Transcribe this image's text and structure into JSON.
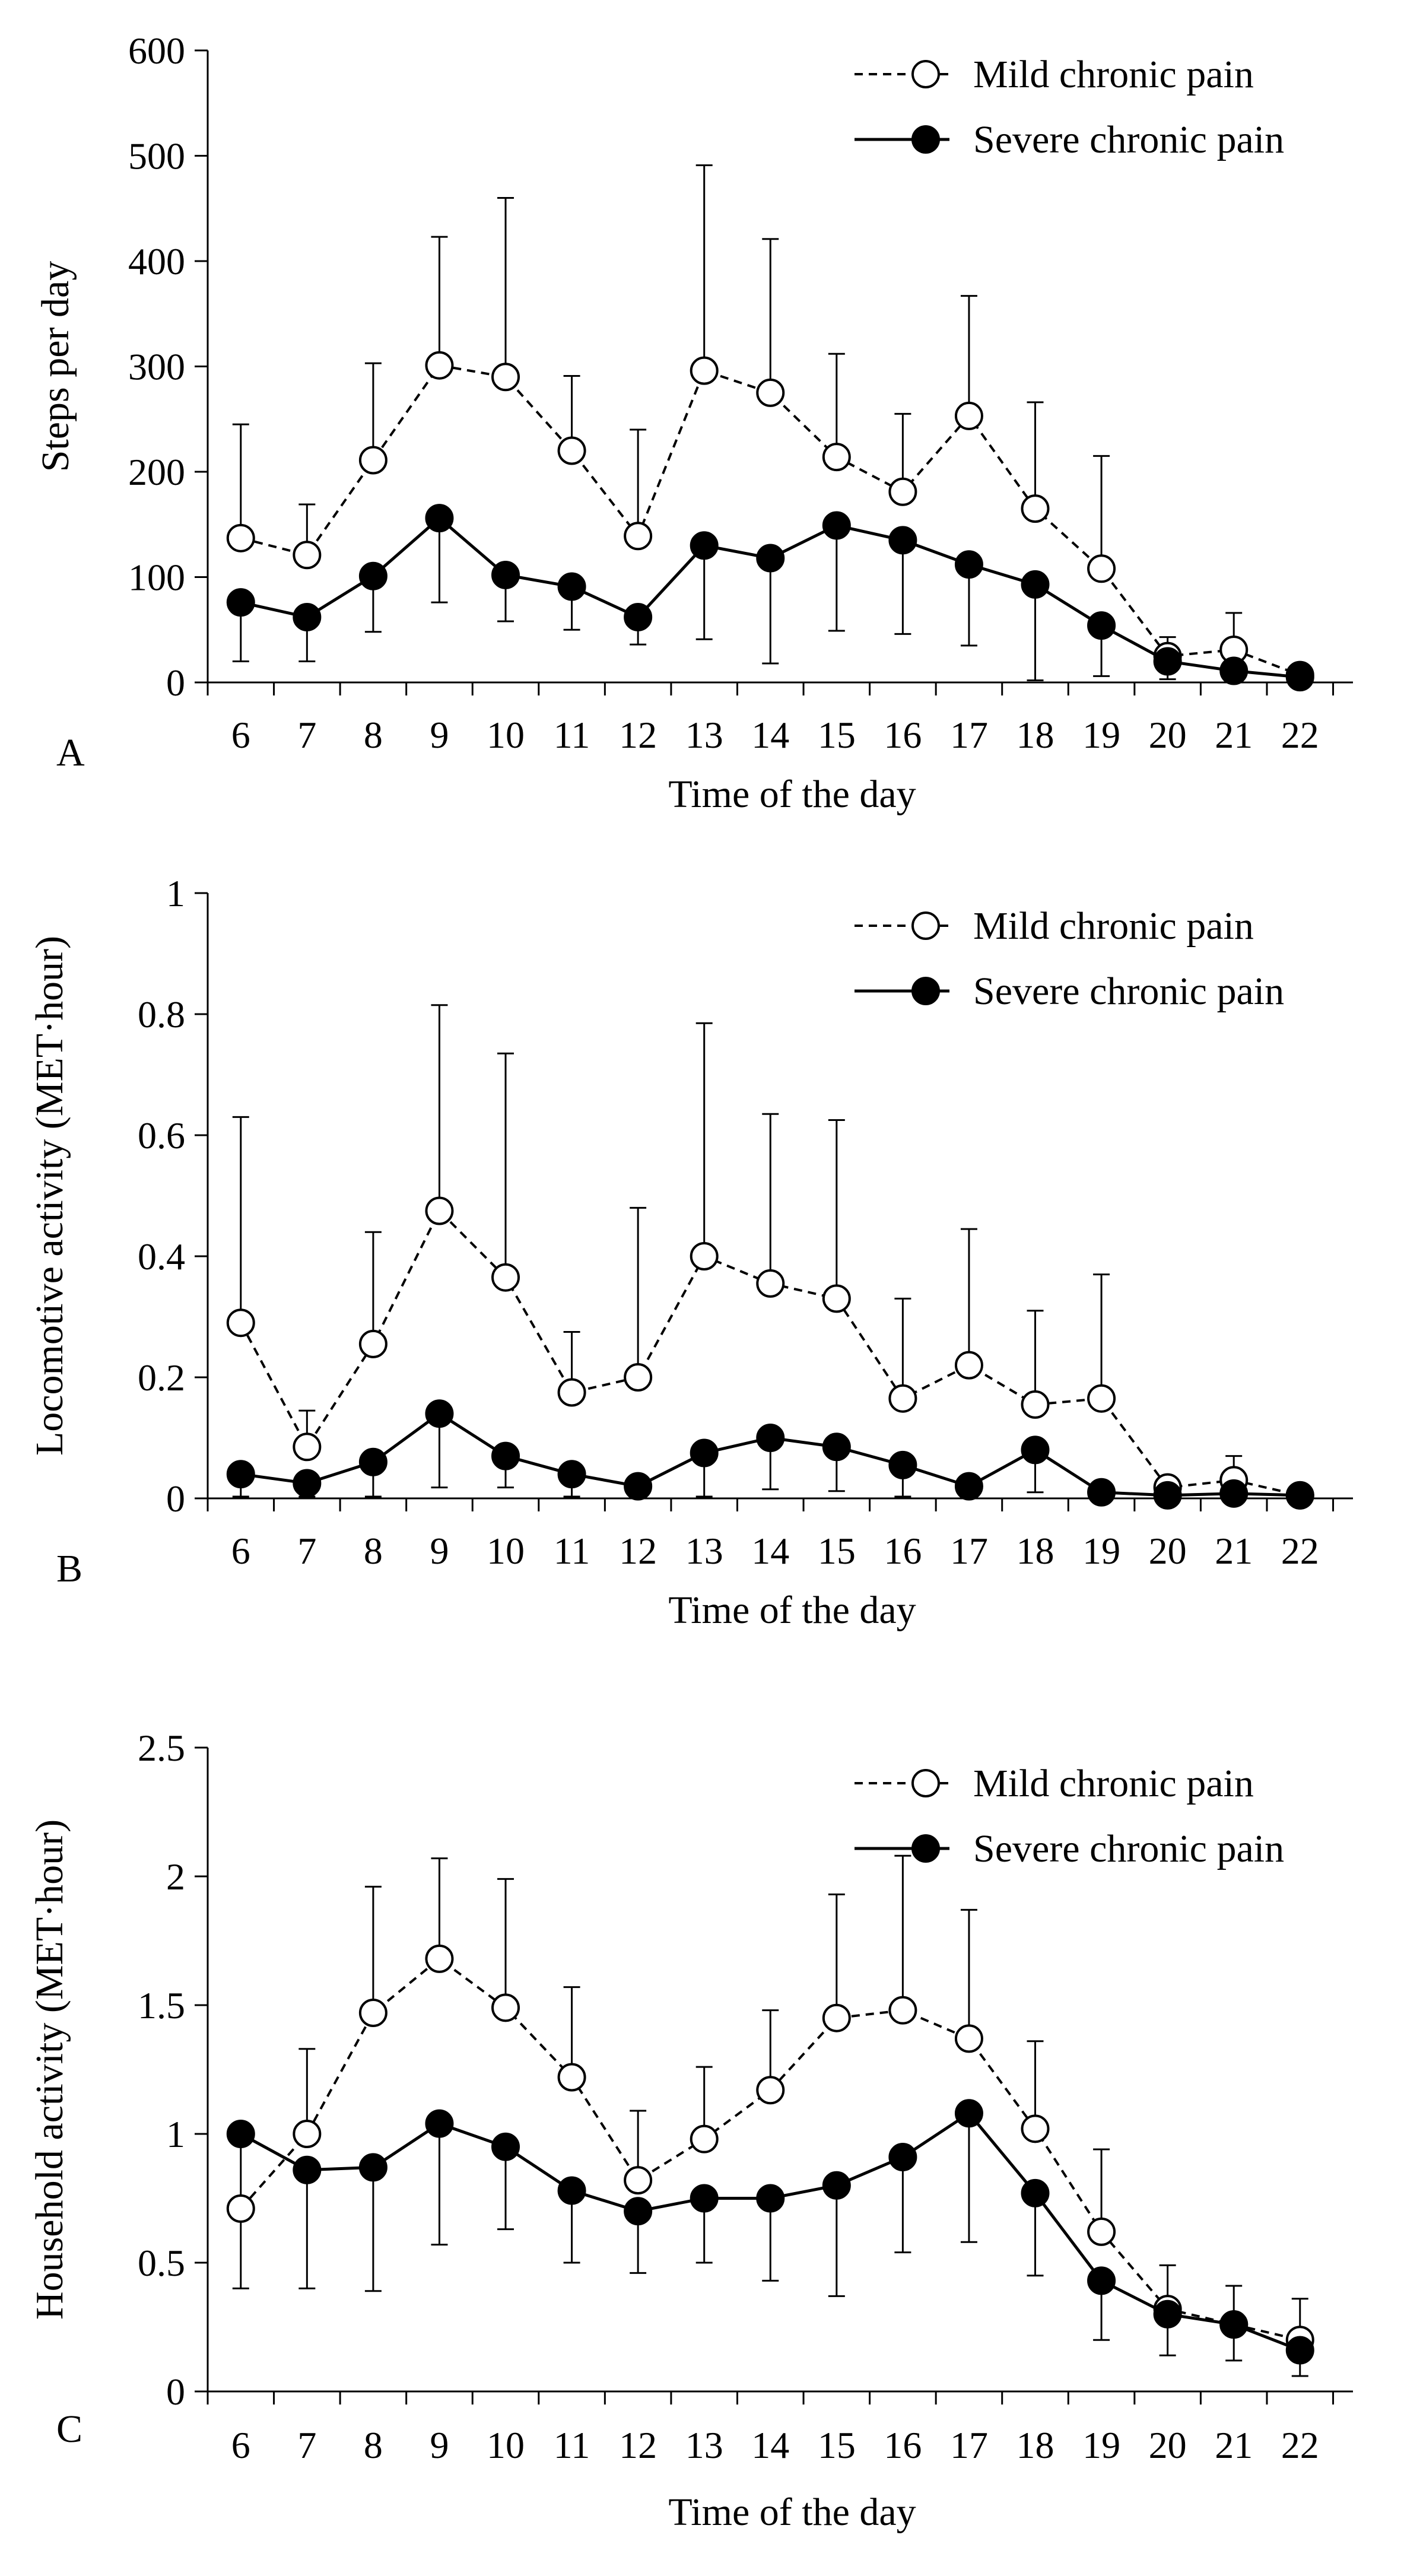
{
  "chart_data": [
    {
      "panel_label": "A",
      "type": "line",
      "xlabel": "Time of the day",
      "ylabel": "Steps per day",
      "ylim": [
        0,
        600
      ],
      "yticks": [
        "0",
        "100",
        "200",
        "300",
        "400",
        "500",
        "600"
      ],
      "x": [
        6,
        7,
        8,
        9,
        10,
        11,
        12,
        13,
        14,
        15,
        16,
        17,
        18,
        19,
        20,
        21,
        22
      ],
      "xtick_labels": [
        "6",
        "7",
        "8",
        "9",
        "10",
        "11",
        "12",
        "13",
        "14",
        "15",
        "16",
        "17",
        "18",
        "19",
        "20",
        "21",
        "22"
      ],
      "series": [
        {
          "name": "Mild chronic pain",
          "style": "dashed",
          "marker": "open-circle",
          "values": [
            137,
            121,
            211,
            301,
            290,
            220,
            139,
            296,
            275,
            214,
            181,
            253,
            165,
            108,
            25,
            31,
            7
          ],
          "error_upper": [
            245,
            169,
            303,
            423,
            460,
            291,
            240,
            491,
            421,
            312,
            255,
            367,
            266,
            215,
            43,
            66,
            7
          ],
          "error_dir": "up"
        },
        {
          "name": "Severe chronic pain",
          "style": "solid",
          "marker": "filled-circle",
          "values": [
            76,
            62,
            101,
            156,
            102,
            91,
            62,
            130,
            118,
            149,
            135,
            112,
            93,
            54,
            20,
            11,
            5
          ],
          "error_lower": [
            20,
            20,
            48,
            76,
            58,
            50,
            36,
            41,
            18,
            49,
            46,
            35,
            2,
            6,
            3,
            3,
            2
          ],
          "error_dir": "down"
        }
      ],
      "legend": {
        "position": "top-right"
      }
    },
    {
      "panel_label": "B",
      "type": "line",
      "xlabel": "Time of the day",
      "ylabel": "Locomotive activity (MET·hour)",
      "ylim": [
        0,
        1
      ],
      "yticks": [
        "0",
        "0.2",
        "0.4",
        "0.6",
        "0.8",
        "1"
      ],
      "x": [
        6,
        7,
        8,
        9,
        10,
        11,
        12,
        13,
        14,
        15,
        16,
        17,
        18,
        19,
        20,
        21,
        22
      ],
      "xtick_labels": [
        "6",
        "7",
        "8",
        "9",
        "10",
        "11",
        "12",
        "13",
        "14",
        "15",
        "16",
        "17",
        "18",
        "19",
        "20",
        "21",
        "22"
      ],
      "series": [
        {
          "name": "Mild chronic pain",
          "style": "dashed",
          "marker": "open-circle",
          "values": [
            0.29,
            0.085,
            0.255,
            0.475,
            0.365,
            0.175,
            0.2,
            0.4,
            0.355,
            0.33,
            0.165,
            0.22,
            0.155,
            0.165,
            0.018,
            0.03,
            0.005
          ],
          "error_upper": [
            0.63,
            0.145,
            0.44,
            0.815,
            0.735,
            0.275,
            0.48,
            0.785,
            0.635,
            0.625,
            0.33,
            0.445,
            0.31,
            0.37,
            0.025,
            0.07,
            0.005
          ],
          "error_dir": "up"
        },
        {
          "name": "Severe chronic pain",
          "style": "solid",
          "marker": "filled-circle",
          "values": [
            0.04,
            0.025,
            0.06,
            0.14,
            0.07,
            0.04,
            0.02,
            0.075,
            0.1,
            0.085,
            0.055,
            0.02,
            0.08,
            0.01,
            0.005,
            0.008,
            0.005
          ],
          "error_lower": [
            0.003,
            0.003,
            0.003,
            0.018,
            0.018,
            0.003,
            0.003,
            0.003,
            0.015,
            0.012,
            0.003,
            0.003,
            0.01,
            0.003,
            0.002,
            0.002,
            0.002
          ],
          "error_dir": "down"
        }
      ],
      "legend": {
        "position": "top-right"
      }
    },
    {
      "panel_label": "C",
      "type": "line",
      "xlabel": "Time of the day",
      "ylabel": "Household activity (MET·hour)",
      "ylim": [
        0,
        2.5
      ],
      "yticks": [
        "0",
        "0.5",
        "1",
        "1.5",
        "2",
        "2.5"
      ],
      "x": [
        6,
        7,
        8,
        9,
        10,
        11,
        12,
        13,
        14,
        15,
        16,
        17,
        18,
        19,
        20,
        21,
        22
      ],
      "xtick_labels": [
        "6",
        "7",
        "8",
        "9",
        "10",
        "11",
        "12",
        "13",
        "14",
        "15",
        "16",
        "17",
        "18",
        "19",
        "20",
        "21",
        "22"
      ],
      "series": [
        {
          "name": "Mild chronic pain",
          "style": "dashed",
          "marker": "open-circle",
          "values": [
            0.71,
            1.0,
            1.47,
            1.68,
            1.49,
            1.22,
            0.82,
            0.98,
            1.17,
            1.45,
            1.48,
            1.37,
            1.02,
            0.62,
            0.32,
            0.26,
            0.2
          ],
          "error_upper": [
            0.71,
            1.33,
            1.96,
            2.07,
            1.99,
            1.57,
            1.09,
            1.26,
            1.48,
            1.93,
            2.08,
            1.87,
            1.36,
            0.94,
            0.49,
            0.41,
            0.36
          ],
          "error_dir": "up"
        },
        {
          "name": "Severe chronic pain",
          "style": "solid",
          "marker": "filled-circle",
          "values": [
            1.0,
            0.86,
            0.87,
            1.04,
            0.95,
            0.78,
            0.7,
            0.75,
            0.75,
            0.8,
            0.91,
            1.08,
            0.77,
            0.43,
            0.3,
            0.26,
            0.16
          ],
          "error_lower": [
            0.4,
            0.4,
            0.39,
            0.57,
            0.63,
            0.5,
            0.46,
            0.5,
            0.43,
            0.37,
            0.54,
            0.58,
            0.45,
            0.2,
            0.14,
            0.12,
            0.06
          ],
          "error_dir": "down"
        }
      ],
      "legend": {
        "position": "top-right"
      }
    }
  ]
}
